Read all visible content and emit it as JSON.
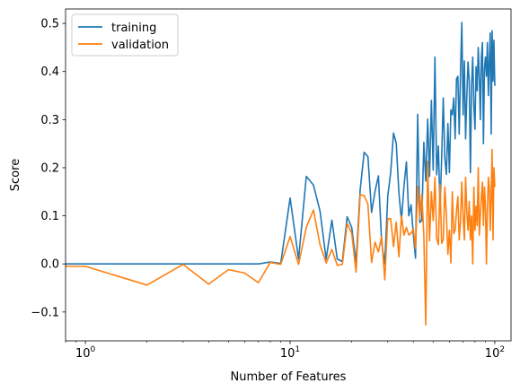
{
  "chart_data": {
    "type": "line",
    "xlabel": "Number of Features",
    "ylabel": "Score",
    "xscale": "log",
    "xlim": [
      0.8,
      120
    ],
    "ylim": [
      -0.16,
      0.53
    ],
    "xticks": [
      {
        "value": 1,
        "base": "10",
        "exp": "0"
      },
      {
        "value": 10,
        "base": "10",
        "exp": "1"
      },
      {
        "value": 100,
        "base": "10",
        "exp": "2"
      }
    ],
    "yticks": [
      {
        "value": -0.1,
        "label": "−0.1"
      },
      {
        "value": 0.0,
        "label": "0.0"
      },
      {
        "value": 0.1,
        "label": "0.1"
      },
      {
        "value": 0.2,
        "label": "0.2"
      },
      {
        "value": 0.3,
        "label": "0.3"
      },
      {
        "value": 0.4,
        "label": "0.4"
      },
      {
        "value": 0.5,
        "label": "0.5"
      }
    ],
    "grid": false,
    "legend": "top-left",
    "series": [
      {
        "name": "training",
        "color": "#1f77b4",
        "x": [
          0.8,
          1,
          2,
          3,
          4,
          5,
          6,
          7,
          8,
          9,
          10,
          11,
          12,
          13,
          14,
          15,
          16,
          17,
          18,
          19,
          20,
          21,
          22,
          23,
          24,
          25,
          26,
          27,
          28,
          29,
          30,
          31,
          32,
          33,
          34,
          35,
          36,
          37,
          38,
          39,
          40,
          41,
          42,
          43,
          44,
          45,
          46,
          47,
          48,
          49,
          50,
          51,
          52,
          53,
          54,
          55,
          56,
          57,
          58,
          59,
          60,
          61,
          62,
          63,
          64,
          65,
          66,
          67,
          68,
          69,
          70,
          71,
          72,
          73,
          74,
          75,
          76,
          77,
          78,
          79,
          80,
          81,
          82,
          83,
          84,
          85,
          86,
          87,
          88,
          89,
          90,
          91,
          92,
          93,
          94,
          95,
          96,
          97,
          98,
          99,
          100
        ],
        "y": [
          0.0,
          0.0,
          0.0,
          0.0,
          0.0,
          0.0,
          0.0,
          0.0,
          0.004,
          0.001,
          0.137,
          0.01,
          0.182,
          0.164,
          0.11,
          0.01,
          0.091,
          0.01,
          0.005,
          0.098,
          0.076,
          0.002,
          0.155,
          0.232,
          0.223,
          0.107,
          0.151,
          0.183,
          0.045,
          0.0,
          0.141,
          0.19,
          0.272,
          0.251,
          0.148,
          0.09,
          0.162,
          0.212,
          0.1,
          0.123,
          0.06,
          0.012,
          0.311,
          0.086,
          0.09,
          0.253,
          0.172,
          0.301,
          0.182,
          0.34,
          0.195,
          0.43,
          0.185,
          0.245,
          0.116,
          0.22,
          0.345,
          0.22,
          0.186,
          0.292,
          0.19,
          0.32,
          0.31,
          0.345,
          0.26,
          0.385,
          0.39,
          0.27,
          0.4,
          0.502,
          0.31,
          0.422,
          0.26,
          0.35,
          0.42,
          0.38,
          0.19,
          0.37,
          0.43,
          0.33,
          0.28,
          0.41,
          0.36,
          0.45,
          0.39,
          0.3,
          0.43,
          0.46,
          0.25,
          0.405,
          0.43,
          0.39,
          0.46,
          0.35,
          0.42,
          0.48,
          0.27,
          0.485,
          0.38,
          0.465,
          0.37
        ]
      },
      {
        "name": "validation",
        "color": "#ff7f0e",
        "x": [
          0.8,
          1,
          2,
          3,
          4,
          5,
          6,
          7,
          8,
          9,
          10,
          11,
          12,
          13,
          14,
          15,
          16,
          17,
          18,
          19,
          20,
          21,
          22,
          23,
          24,
          25,
          26,
          27,
          28,
          29,
          30,
          31,
          32,
          33,
          34,
          35,
          36,
          37,
          38,
          39,
          40,
          41,
          42,
          43,
          44,
          45,
          46,
          47,
          48,
          49,
          50,
          51,
          52,
          53,
          54,
          55,
          56,
          57,
          58,
          59,
          60,
          61,
          62,
          63,
          64,
          65,
          66,
          67,
          68,
          69,
          70,
          71,
          72,
          73,
          74,
          75,
          76,
          77,
          78,
          79,
          80,
          81,
          82,
          83,
          84,
          85,
          86,
          87,
          88,
          89,
          90,
          91,
          92,
          93,
          94,
          95,
          96,
          97,
          98,
          99,
          100
        ],
        "y": [
          -0.005,
          -0.005,
          -0.044,
          -0.001,
          -0.042,
          -0.012,
          -0.019,
          -0.039,
          0.003,
          -0.001,
          0.057,
          -0.001,
          0.076,
          0.112,
          0.04,
          0.002,
          0.03,
          -0.003,
          -0.001,
          0.084,
          0.064,
          -0.017,
          0.144,
          0.142,
          0.124,
          0.003,
          0.045,
          0.025,
          0.057,
          -0.033,
          0.094,
          0.094,
          0.036,
          0.087,
          0.015,
          0.1,
          0.06,
          0.076,
          0.06,
          0.064,
          0.073,
          0.032,
          0.161,
          0.094,
          0.145,
          0.06,
          -0.127,
          0.213,
          0.048,
          0.15,
          0.09,
          0.18,
          0.053,
          0.04,
          0.166,
          0.043,
          0.05,
          0.16,
          0.102,
          0.02,
          0.07,
          0.002,
          0.15,
          0.063,
          0.07,
          0.11,
          0.14,
          0.05,
          0.09,
          0.17,
          0.1,
          0.05,
          0.18,
          0.11,
          0.07,
          0.13,
          0.05,
          0.1,
          0.0,
          0.16,
          0.07,
          0.12,
          0.08,
          0.2,
          0.06,
          0.1,
          0.14,
          0.17,
          0.08,
          0.16,
          0.12,
          0.0,
          0.11,
          0.18,
          0.16,
          0.07,
          0.14,
          0.238,
          0.05,
          0.2,
          0.16
        ]
      }
    ]
  }
}
